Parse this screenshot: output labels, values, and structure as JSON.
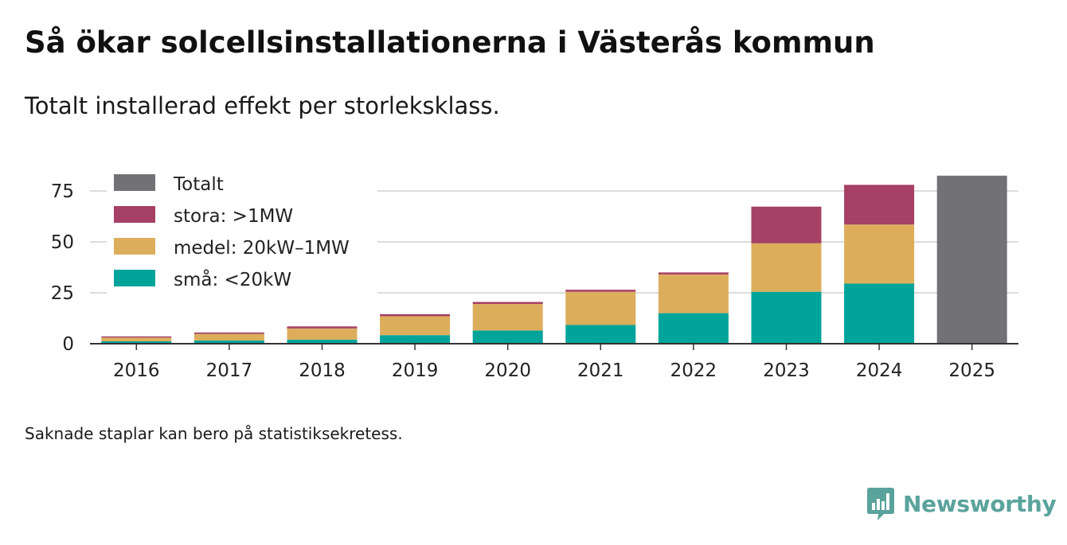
{
  "title": "Så ökar solcellsinstallationerna i Västerås kommun",
  "subtitle": "Totalt installerad effekt per storleksklass.",
  "footnote": "Saknade staplar kan bero på statistiksekretess.",
  "brand": {
    "name": "Newsworthy",
    "icon": "newsworthy-logo-icon",
    "color": "#5aa39c"
  },
  "chart_data": {
    "type": "bar",
    "stacked": true,
    "categories": [
      "2016",
      "2017",
      "2018",
      "2019",
      "2020",
      "2021",
      "2022",
      "2023",
      "2024",
      "2025"
    ],
    "series": [
      {
        "name": "små: <20kW",
        "color": "#00a49a",
        "values": [
          1.2,
          1.6,
          2.0,
          4.2,
          6.5,
          9.2,
          15.0,
          25.5,
          29.5,
          null
        ]
      },
      {
        "name": "medel: 20kW–1MW",
        "color": "#dcae5c",
        "values": [
          1.8,
          3.2,
          5.5,
          9.3,
          13.0,
          16.3,
          19.0,
          23.8,
          29.0,
          null
        ]
      },
      {
        "name": "stora: >1MW",
        "color": "#a64065",
        "values": [
          0.6,
          0.7,
          1.0,
          1.0,
          1.0,
          1.0,
          1.0,
          18.0,
          19.5,
          null
        ]
      },
      {
        "name": "Totalt",
        "color": "#727176",
        "values": [
          null,
          null,
          null,
          null,
          null,
          null,
          null,
          null,
          null,
          82.5
        ]
      }
    ],
    "legend_order": [
      "Totalt",
      "stora: >1MW",
      "medel: 20kW–1MW",
      "små: <20kW"
    ],
    "legend_position": "top-left",
    "yticks": [
      0,
      25,
      50,
      75
    ],
    "ylim": [
      0,
      85
    ],
    "xlabel": "",
    "ylabel": "",
    "grid": true
  }
}
